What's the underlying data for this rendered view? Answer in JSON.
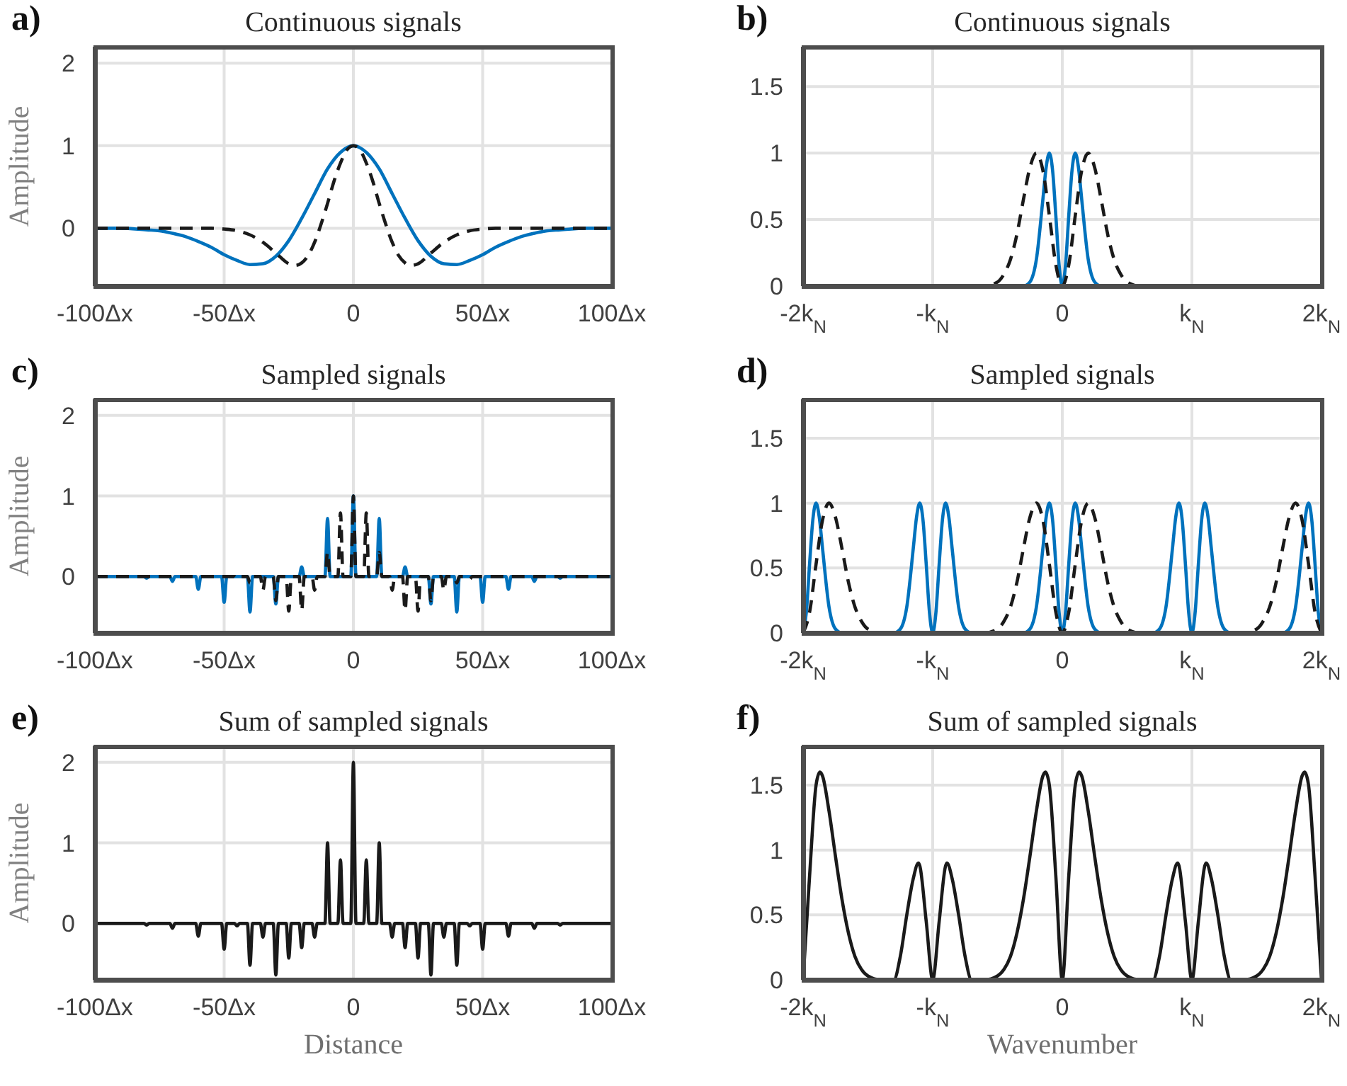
{
  "chart_data": [
    {
      "type": "line",
      "title": "Continuous signals",
      "annotations": [
        "a)"
      ],
      "ylabel": "Amplitude",
      "xlim": [
        -100,
        100
      ],
      "xticks": [
        {
          "value": -100,
          "label": "-100Δx"
        },
        {
          "value": -50,
          "label": "-50Δx"
        },
        {
          "value": 0,
          "label": "0"
        },
        {
          "value": 50,
          "label": "50Δx"
        },
        {
          "value": 100,
          "label": "100Δx"
        }
      ],
      "ylim": [
        -0.7,
        2.2
      ],
      "yticks": [
        0,
        1,
        2
      ],
      "grid": true,
      "series": [
        {
          "color": "#0072bd",
          "line_style": "solid",
          "x": [
            -100,
            -90,
            -80,
            -75,
            -70,
            -65,
            -60,
            -55,
            -50,
            -45,
            -40,
            -35,
            -30,
            -25,
            -20,
            -15,
            -10,
            -5,
            0,
            5,
            10,
            15,
            20,
            25,
            30,
            35,
            40,
            45,
            50,
            55,
            60,
            65,
            70,
            75,
            80,
            90,
            100
          ],
          "values": [
            0,
            0,
            -0.02,
            -0.03,
            -0.06,
            -0.1,
            -0.16,
            -0.23,
            -0.32,
            -0.39,
            -0.44,
            -0.43,
            -0.34,
            -0.15,
            0.12,
            0.42,
            0.72,
            0.92,
            1,
            0.92,
            0.72,
            0.42,
            0.12,
            -0.15,
            -0.34,
            -0.43,
            -0.44,
            -0.39,
            -0.32,
            -0.23,
            -0.16,
            -0.1,
            -0.06,
            -0.03,
            -0.02,
            0,
            0
          ]
        },
        {
          "color": "#1a1a1a",
          "line_style": "dashed",
          "x": [
            -100,
            -55,
            -50,
            -45,
            -40,
            -35,
            -30,
            -25,
            -22.5,
            -20,
            -17.5,
            -15,
            -12.5,
            -10,
            -7.5,
            -5,
            -2.5,
            0,
            2.5,
            5,
            7.5,
            10,
            12.5,
            15,
            17.5,
            20,
            22.5,
            25,
            30,
            35,
            40,
            45,
            50,
            55,
            100
          ],
          "values": [
            0,
            0,
            -0.01,
            -0.03,
            -0.08,
            -0.17,
            -0.3,
            -0.43,
            -0.45,
            -0.42,
            -0.33,
            -0.17,
            0.05,
            0.3,
            0.57,
            0.79,
            0.95,
            1,
            0.95,
            0.79,
            0.57,
            0.3,
            0.05,
            -0.17,
            -0.33,
            -0.42,
            -0.45,
            -0.43,
            -0.3,
            -0.17,
            -0.08,
            -0.03,
            -0.01,
            0,
            0
          ]
        }
      ]
    },
    {
      "type": "line",
      "title": "Continuous signals",
      "annotations": [
        "b)"
      ],
      "xlim": [
        -2,
        2
      ],
      "xticks": [
        {
          "value": -2,
          "label": "-2k$_{N}$"
        },
        {
          "value": -1,
          "label": "-k$_{N}$"
        },
        {
          "value": 0,
          "label": "0"
        },
        {
          "value": 1,
          "label": "k$_{N}$"
        },
        {
          "value": 2,
          "label": "2k$_{N}$"
        }
      ],
      "ylim": [
        0,
        1.8
      ],
      "yticks": [
        0,
        0.5,
        1,
        1.5
      ],
      "grid": true,
      "series": [
        {
          "color": "#0072bd",
          "line_style": "solid",
          "x": [
            -2,
            -0.3,
            -0.25,
            -0.2,
            -0.15,
            -0.125,
            -0.1,
            -0.075,
            -0.05,
            -0.025,
            0,
            0.025,
            0.05,
            0.075,
            0.1,
            0.125,
            0.15,
            0.2,
            0.25,
            0.3,
            2
          ],
          "values": [
            0,
            0,
            0.03,
            0.2,
            0.65,
            0.89,
            1,
            0.87,
            0.53,
            0.16,
            0,
            0.16,
            0.53,
            0.87,
            1,
            0.89,
            0.65,
            0.2,
            0.03,
            0,
            0
          ]
        },
        {
          "color": "#1a1a1a",
          "line_style": "dashed",
          "x": [
            -2,
            -0.6,
            -0.5,
            -0.45,
            -0.4,
            -0.35,
            -0.3,
            -0.25,
            -0.2,
            -0.15,
            -0.1,
            -0.05,
            0,
            0.05,
            0.1,
            0.15,
            0.2,
            0.25,
            0.3,
            0.35,
            0.4,
            0.45,
            0.5,
            0.6,
            2
          ],
          "values": [
            0,
            0,
            0.03,
            0.09,
            0.2,
            0.39,
            0.65,
            0.89,
            1,
            0.87,
            0.53,
            0.16,
            0,
            0.16,
            0.53,
            0.87,
            1,
            0.89,
            0.65,
            0.39,
            0.2,
            0.09,
            0.03,
            0,
            0
          ]
        }
      ]
    },
    {
      "type": "line",
      "title": "Sampled signals",
      "annotations": [
        "c)"
      ],
      "ylabel": "Amplitude",
      "xlim": [
        -100,
        100
      ],
      "xticks": [
        {
          "value": -100,
          "label": "-100Δx"
        },
        {
          "value": -50,
          "label": "-50Δx"
        },
        {
          "value": 0,
          "label": "0"
        },
        {
          "value": 50,
          "label": "50Δx"
        },
        {
          "value": 100,
          "label": "100Δx"
        }
      ],
      "ylim": [
        -0.7,
        2.2
      ],
      "yticks": [
        0,
        1,
        2
      ],
      "grid": true,
      "series": [
        {
          "color": "#0072bd",
          "line_style": "solid",
          "x": [
            -100,
            -81,
            -80,
            -79,
            -71,
            -70,
            -69,
            -61,
            -60,
            -59,
            -51,
            -50,
            -49,
            -41,
            -40,
            -39,
            -31,
            -30,
            -29,
            -21,
            -20,
            -19,
            -11,
            -10,
            -9,
            -1,
            0,
            1,
            9,
            10,
            11,
            19,
            20,
            21,
            29,
            30,
            31,
            39,
            40,
            41,
            49,
            50,
            51,
            59,
            60,
            61,
            69,
            70,
            71,
            79,
            80,
            81,
            100
          ],
          "values": [
            0,
            0,
            -0.02,
            0,
            0,
            -0.06,
            0,
            0,
            -0.16,
            0,
            0,
            -0.32,
            0,
            0,
            -0.44,
            0,
            0,
            -0.34,
            0,
            0,
            0.12,
            0,
            0,
            0.72,
            0,
            0,
            1,
            0,
            0,
            0.72,
            0,
            0,
            0.12,
            0,
            0,
            -0.34,
            0,
            0,
            -0.44,
            0,
            0,
            -0.32,
            0,
            0,
            -0.16,
            0,
            0,
            -0.06,
            0,
            0,
            -0.02,
            0,
            0
          ]
        },
        {
          "color": "#1a1a1a",
          "line_style": "dashed",
          "x": [
            -100,
            -46,
            -45,
            -44,
            -41,
            -40,
            -39,
            -36,
            -35,
            -34,
            -31,
            -30,
            -29,
            -26,
            -25,
            -24,
            -21,
            -20,
            -19,
            -16,
            -15,
            -14,
            -11,
            -10,
            -9,
            -6,
            -5,
            -4,
            -1,
            0,
            1,
            4,
            5,
            6,
            9,
            10,
            11,
            14,
            15,
            16,
            19,
            20,
            21,
            24,
            25,
            26,
            29,
            30,
            31,
            34,
            35,
            36,
            39,
            40,
            41,
            44,
            45,
            46,
            100
          ],
          "values": [
            0,
            0,
            -0.03,
            0,
            0,
            -0.08,
            0,
            0,
            -0.17,
            0,
            0,
            -0.3,
            0,
            0,
            -0.43,
            0,
            0,
            -0.42,
            0,
            0,
            -0.17,
            0,
            0,
            0.3,
            0,
            0,
            0.79,
            0,
            0,
            1,
            0,
            0,
            0.79,
            0,
            0,
            0.3,
            0,
            0,
            -0.17,
            0,
            0,
            -0.42,
            0,
            0,
            -0.43,
            0,
            0,
            -0.3,
            0,
            0,
            -0.17,
            0,
            0,
            -0.08,
            0,
            0,
            -0.03,
            0,
            0
          ]
        }
      ]
    },
    {
      "type": "line",
      "title": "Sampled signals",
      "annotations": [
        "d)"
      ],
      "xlim": [
        -2,
        2
      ],
      "xticks": [
        {
          "value": -2,
          "label": "-2k$_{N}$"
        },
        {
          "value": -1,
          "label": "-k$_{N}$"
        },
        {
          "value": 0,
          "label": "0"
        },
        {
          "value": 1,
          "label": "k$_{N}$"
        },
        {
          "value": 2,
          "label": "2k$_{N}$"
        }
      ],
      "ylim": [
        0,
        1.8
      ],
      "yticks": [
        0,
        0.5,
        1,
        1.5
      ],
      "grid": true,
      "series": [
        {
          "color": "#0072bd",
          "line_style": "solid",
          "x": [
            -2,
            -1.975,
            -1.95,
            -1.925,
            -1.9,
            -1.875,
            -1.85,
            -1.8,
            -1.75,
            -1.7,
            -1.3,
            -1.25,
            -1.2,
            -1.15,
            -1.125,
            -1.1,
            -1.075,
            -1.05,
            -1.025,
            -1,
            -0.975,
            -0.95,
            -0.925,
            -0.9,
            -0.875,
            -0.85,
            -0.8,
            -0.75,
            -0.7,
            -0.3,
            -0.25,
            -0.2,
            -0.15,
            -0.125,
            -0.1,
            -0.075,
            -0.05,
            -0.025,
            0,
            0.025,
            0.05,
            0.075,
            0.1,
            0.125,
            0.15,
            0.2,
            0.25,
            0.3,
            0.7,
            0.75,
            0.8,
            0.85,
            0.875,
            0.9,
            0.925,
            0.95,
            0.975,
            1,
            1.025,
            1.05,
            1.075,
            1.1,
            1.125,
            1.15,
            1.2,
            1.25,
            1.3,
            1.7,
            1.75,
            1.8,
            1.85,
            1.875,
            1.9,
            1.925,
            1.95,
            1.975,
            2
          ],
          "values": [
            0,
            0.16,
            0.53,
            0.87,
            1,
            0.89,
            0.65,
            0.2,
            0.03,
            0,
            0,
            0.03,
            0.2,
            0.65,
            0.89,
            1,
            0.87,
            0.53,
            0.16,
            0,
            0.16,
            0.53,
            0.87,
            1,
            0.89,
            0.65,
            0.2,
            0.03,
            0,
            0,
            0.03,
            0.2,
            0.65,
            0.89,
            1,
            0.87,
            0.53,
            0.16,
            0,
            0.16,
            0.53,
            0.87,
            1,
            0.89,
            0.65,
            0.2,
            0.03,
            0,
            0,
            0.03,
            0.2,
            0.65,
            0.89,
            1,
            0.87,
            0.53,
            0.16,
            0,
            0.16,
            0.53,
            0.87,
            1,
            0.89,
            0.65,
            0.2,
            0.03,
            0,
            0,
            0.03,
            0.2,
            0.65,
            0.89,
            1,
            0.87,
            0.53,
            0.16,
            0
          ]
        },
        {
          "color": "#1a1a1a",
          "line_style": "dashed",
          "x": [
            -2,
            -1.95,
            -1.9,
            -1.85,
            -1.8,
            -1.75,
            -1.7,
            -1.65,
            -1.6,
            -1.55,
            -1.5,
            -1.4,
            -0.6,
            -0.5,
            -0.45,
            -0.4,
            -0.35,
            -0.3,
            -0.25,
            -0.2,
            -0.15,
            -0.1,
            -0.05,
            0,
            0.05,
            0.1,
            0.15,
            0.2,
            0.25,
            0.3,
            0.35,
            0.4,
            0.45,
            0.5,
            0.6,
            1.4,
            1.5,
            1.55,
            1.6,
            1.65,
            1.7,
            1.75,
            1.8,
            1.85,
            1.9,
            1.95,
            2
          ],
          "values": [
            0,
            0.16,
            0.53,
            0.87,
            1,
            0.89,
            0.65,
            0.39,
            0.2,
            0.09,
            0.03,
            0,
            0,
            0.03,
            0.09,
            0.2,
            0.39,
            0.65,
            0.89,
            1,
            0.87,
            0.53,
            0.16,
            0,
            0.16,
            0.53,
            0.87,
            1,
            0.89,
            0.65,
            0.39,
            0.2,
            0.09,
            0.03,
            0,
            0,
            0.03,
            0.09,
            0.2,
            0.39,
            0.65,
            0.89,
            1,
            0.87,
            0.53,
            0.16,
            0
          ]
        }
      ]
    },
    {
      "type": "line",
      "title": "Sum of sampled signals",
      "annotations": [
        "e)"
      ],
      "xlabel": "Distance",
      "ylabel": "Amplitude",
      "xlim": [
        -100,
        100
      ],
      "xticks": [
        {
          "value": -100,
          "label": "-100Δx"
        },
        {
          "value": -50,
          "label": "-50Δx"
        },
        {
          "value": 0,
          "label": "0"
        },
        {
          "value": 50,
          "label": "50Δx"
        },
        {
          "value": 100,
          "label": "100Δx"
        }
      ],
      "ylim": [
        -0.7,
        2.2
      ],
      "yticks": [
        0,
        1,
        2
      ],
      "grid": true,
      "series": [
        {
          "color": "#1a1a1a",
          "line_style": "solid",
          "x": [
            -100,
            -81,
            -80,
            -79,
            -71,
            -70,
            -69,
            -61,
            -60,
            -59,
            -51,
            -50,
            -49,
            -46,
            -45,
            -44,
            -41,
            -40,
            -39,
            -36,
            -35,
            -34,
            -31,
            -30,
            -29,
            -26,
            -25,
            -24,
            -21,
            -20,
            -19,
            -16,
            -15,
            -14,
            -11,
            -10,
            -9,
            -6,
            -5,
            -4,
            -1,
            0,
            1,
            4,
            5,
            6,
            9,
            10,
            11,
            14,
            15,
            16,
            19,
            20,
            21,
            24,
            25,
            26,
            29,
            30,
            31,
            34,
            35,
            36,
            39,
            40,
            41,
            44,
            45,
            46,
            49,
            50,
            51,
            59,
            60,
            61,
            69,
            70,
            71,
            79,
            80,
            81,
            100
          ],
          "values": [
            0,
            0,
            -0.02,
            0,
            0,
            -0.06,
            0,
            0,
            -0.16,
            0,
            0,
            -0.32,
            0,
            0,
            -0.03,
            0,
            0,
            -0.52,
            0,
            0,
            -0.17,
            0,
            0,
            -0.64,
            0,
            0,
            -0.43,
            0,
            0,
            -0.3,
            0,
            0,
            -0.17,
            0,
            0,
            1,
            0,
            0,
            0.79,
            0,
            0,
            2,
            0,
            0,
            0.79,
            0,
            0,
            1,
            0,
            0,
            -0.17,
            0,
            0,
            -0.3,
            0,
            0,
            -0.43,
            0,
            0,
            -0.64,
            0,
            0,
            -0.17,
            0,
            0,
            -0.52,
            0,
            0,
            -0.03,
            0,
            0,
            -0.32,
            0,
            0,
            -0.16,
            0,
            0,
            -0.06,
            0,
            0,
            -0.02,
            0,
            0
          ]
        }
      ]
    },
    {
      "type": "line",
      "title": "Sum of sampled signals",
      "annotations": [
        "f)"
      ],
      "xlabel": "Wavenumber",
      "xlim": [
        -2,
        2
      ],
      "xticks": [
        {
          "value": -2,
          "label": "-2k$_{N}$"
        },
        {
          "value": -1,
          "label": "-k$_{N}$"
        },
        {
          "value": 0,
          "label": "0"
        },
        {
          "value": 1,
          "label": "k$_{N}$"
        },
        {
          "value": 2,
          "label": "2k$_{N}$"
        }
      ],
      "ylim": [
        0,
        1.8
      ],
      "yticks": [
        0,
        0.5,
        1,
        1.5
      ],
      "grid": true,
      "series": [
        {
          "color": "#1a1a1a",
          "line_style": "solid",
          "x": [
            -2,
            -1.95,
            -1.9,
            -1.87,
            -1.85,
            -1.8,
            -1.75,
            -1.7,
            -1.65,
            -1.6,
            -1.55,
            -1.5,
            -1.4,
            -1.3,
            -1.25,
            -1.2,
            -1.15,
            -1.11,
            -1.1,
            -1.05,
            -1,
            -0.95,
            -0.9,
            -0.89,
            -0.85,
            -0.8,
            -0.75,
            -0.7,
            -0.6,
            -0.5,
            -0.45,
            -0.4,
            -0.35,
            -0.3,
            -0.25,
            -0.2,
            -0.15,
            -0.13,
            -0.1,
            -0.05,
            0,
            0.05,
            0.1,
            0.13,
            0.15,
            0.2,
            0.25,
            0.3,
            0.35,
            0.4,
            0.45,
            0.5,
            0.6,
            0.7,
            0.75,
            0.8,
            0.85,
            0.89,
            0.9,
            0.95,
            1,
            1.05,
            1.1,
            1.11,
            1.15,
            1.2,
            1.25,
            1.3,
            1.4,
            1.5,
            1.55,
            1.6,
            1.65,
            1.7,
            1.75,
            1.8,
            1.85,
            1.87,
            1.9,
            1.95,
            2
          ],
          "values": [
            0,
            0.8,
            1.5,
            1.6,
            1.57,
            1.3,
            0.95,
            0.62,
            0.36,
            0.18,
            0.08,
            0.03,
            0,
            0,
            0.18,
            0.5,
            0.78,
            0.9,
            0.88,
            0.45,
            0,
            0.45,
            0.88,
            0.9,
            0.78,
            0.5,
            0.18,
            0,
            0,
            0.03,
            0.08,
            0.18,
            0.36,
            0.62,
            0.95,
            1.3,
            1.57,
            1.6,
            1.5,
            0.8,
            0,
            0.8,
            1.5,
            1.6,
            1.57,
            1.3,
            0.95,
            0.62,
            0.36,
            0.18,
            0.08,
            0.03,
            0,
            0,
            0.18,
            0.5,
            0.78,
            0.9,
            0.88,
            0.45,
            0,
            0.45,
            0.88,
            0.9,
            0.78,
            0.5,
            0.18,
            0,
            0,
            0.03,
            0.08,
            0.18,
            0.36,
            0.62,
            0.95,
            1.3,
            1.57,
            1.6,
            1.5,
            0.8,
            0
          ]
        }
      ]
    }
  ]
}
